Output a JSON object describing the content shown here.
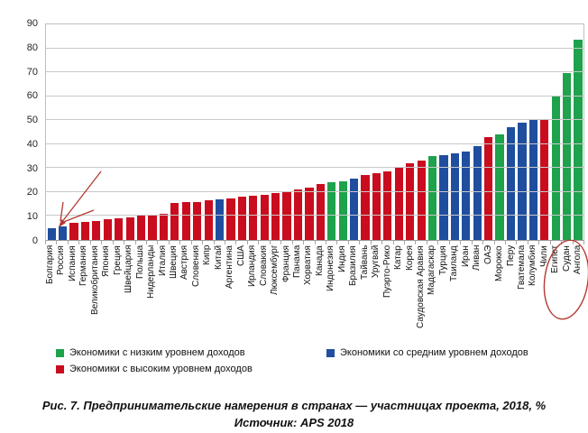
{
  "chart_data": {
    "type": "bar",
    "title": "",
    "xlabel": "",
    "ylabel": "",
    "ylim": [
      0,
      90
    ],
    "ytick_step": 10,
    "grid": true,
    "legend_position": "bottom",
    "groups": {
      "low": {
        "label": "Экономики с низким уровнем доходов",
        "color": "#1ea24c"
      },
      "middle": {
        "label": "Экономики со средним уровнем доходов",
        "color": "#1f4e9f"
      },
      "high": {
        "label": "Экономики с высоким уровнем доходов",
        "color": "#c90d1e"
      }
    },
    "points": [
      {
        "country": "Болгария",
        "value": 5,
        "group": "middle"
      },
      {
        "country": "Россия",
        "value": 5.5,
        "group": "middle"
      },
      {
        "country": "Испания",
        "value": 7,
        "group": "high"
      },
      {
        "country": "Германия",
        "value": 7.5,
        "group": "high"
      },
      {
        "country": "Великобритания",
        "value": 8,
        "group": "high"
      },
      {
        "country": "Япония",
        "value": 8.5,
        "group": "high"
      },
      {
        "country": "Греция",
        "value": 9,
        "group": "high"
      },
      {
        "country": "Швейцария",
        "value": 9.5,
        "group": "high"
      },
      {
        "country": "Польша",
        "value": 10,
        "group": "high"
      },
      {
        "country": "Нидерланды",
        "value": 10.5,
        "group": "high"
      },
      {
        "country": "Италия",
        "value": 11,
        "group": "high"
      },
      {
        "country": "Швеция",
        "value": 15.5,
        "group": "high"
      },
      {
        "country": "Австрия",
        "value": 16,
        "group": "high"
      },
      {
        "country": "Словения",
        "value": 16,
        "group": "high"
      },
      {
        "country": "Кипр",
        "value": 16.5,
        "group": "high"
      },
      {
        "country": "Китай",
        "value": 17,
        "group": "middle"
      },
      {
        "country": "Аргентина",
        "value": 17.5,
        "group": "high"
      },
      {
        "country": "США",
        "value": 18,
        "group": "high"
      },
      {
        "country": "Ирландия",
        "value": 18.5,
        "group": "high"
      },
      {
        "country": "Словакия",
        "value": 19,
        "group": "high"
      },
      {
        "country": "Люксембург",
        "value": 19.5,
        "group": "high"
      },
      {
        "country": "Франция",
        "value": 20.5,
        "group": "high"
      },
      {
        "country": "Панама",
        "value": 21,
        "group": "high"
      },
      {
        "country": "Хорватия",
        "value": 22,
        "group": "high"
      },
      {
        "country": "Канада",
        "value": 23.5,
        "group": "high"
      },
      {
        "country": "Индонезия",
        "value": 24,
        "group": "low"
      },
      {
        "country": "Индия",
        "value": 24.5,
        "group": "low"
      },
      {
        "country": "Бразилия",
        "value": 25.5,
        "group": "middle"
      },
      {
        "country": "Тайвань",
        "value": 27,
        "group": "high"
      },
      {
        "country": "Уругвай",
        "value": 28,
        "group": "high"
      },
      {
        "country": "Пуэрто-Рико",
        "value": 28.5,
        "group": "high"
      },
      {
        "country": "Катар",
        "value": 30.5,
        "group": "high"
      },
      {
        "country": "Корея",
        "value": 32,
        "group": "high"
      },
      {
        "country": "Саудовская Аравия",
        "value": 33,
        "group": "high"
      },
      {
        "country": "Мадагаскар",
        "value": 35,
        "group": "low"
      },
      {
        "country": "Турция",
        "value": 35.5,
        "group": "middle"
      },
      {
        "country": "Таиланд",
        "value": 36,
        "group": "middle"
      },
      {
        "country": "Иран",
        "value": 37,
        "group": "middle"
      },
      {
        "country": "Ливан",
        "value": 39,
        "group": "middle"
      },
      {
        "country": "ОАЭ",
        "value": 43,
        "group": "high"
      },
      {
        "country": "Морокко",
        "value": 44,
        "group": "low"
      },
      {
        "country": "Перу",
        "value": 47,
        "group": "middle"
      },
      {
        "country": "Гватемала",
        "value": 49,
        "group": "middle"
      },
      {
        "country": "Колумбия",
        "value": 50,
        "group": "middle"
      },
      {
        "country": "Чили",
        "value": 50,
        "group": "high"
      },
      {
        "country": "Египет",
        "value": 60,
        "group": "low"
      },
      {
        "country": "Судан",
        "value": 69.5,
        "group": "low"
      },
      {
        "country": "Ангола",
        "value": 83.5,
        "group": "low"
      }
    ]
  },
  "legend": {
    "rows": [
      [
        "low",
        "middle"
      ],
      [
        "high"
      ]
    ]
  },
  "annotations": {
    "color": "#b23a32",
    "arrow": {
      "type": "arrow",
      "points_to": "Россия"
    },
    "ellipse": {
      "type": "ellipse",
      "encircles": [
        "Египет",
        "Судан",
        "Ангола"
      ]
    }
  },
  "caption": {
    "line1": "Рис. 7. Предпринимательские намерения в странах — участницах проекта, 2018, %",
    "line2": "Источник: APS 2018"
  }
}
